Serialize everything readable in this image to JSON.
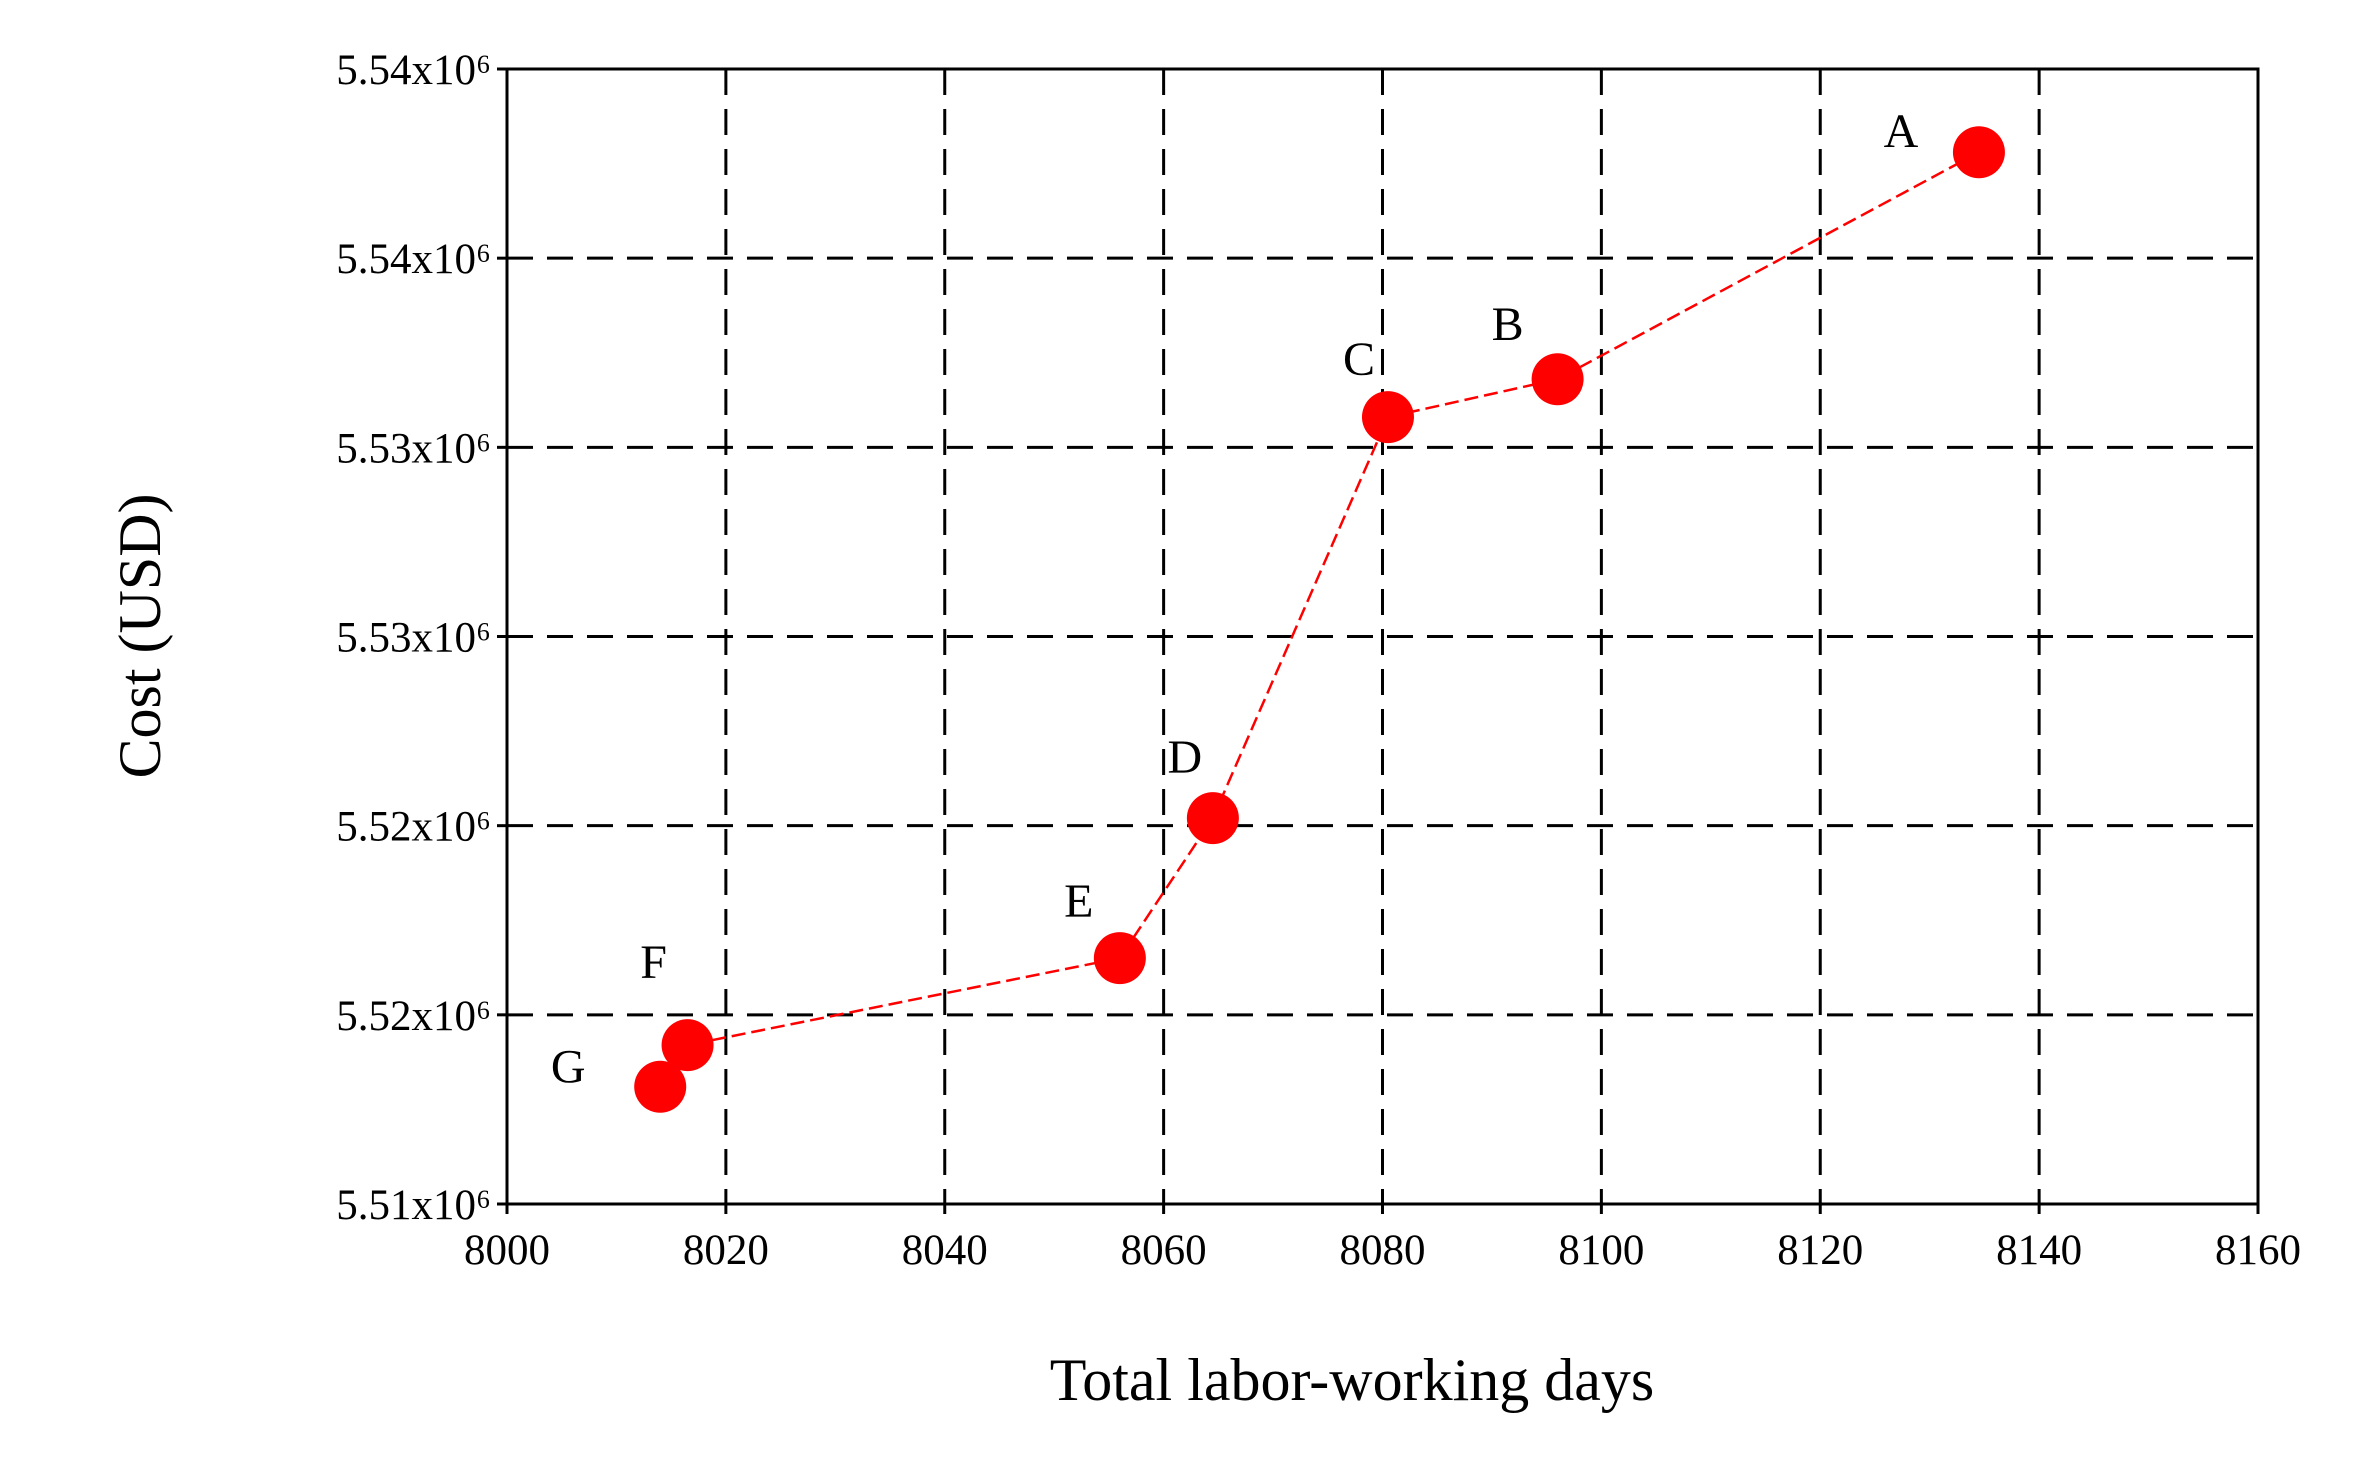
{
  "chart_data": {
    "type": "scatter-line",
    "x_label": "Total labor-working days",
    "y_label": "Cost (USD)",
    "x": [
      8134.5,
      8096,
      8080.5,
      8064.5,
      8056,
      8016.5,
      8014
    ],
    "values": [
      5537800,
      5531800,
      5530800,
      5520200,
      5516500,
      5514200,
      5513100
    ],
    "labels": [
      "A",
      "B",
      "C",
      "D",
      "E",
      "F",
      "G"
    ],
    "color": "#ff0000",
    "xlim": [
      8000,
      8160
    ],
    "xticks": [
      8000,
      8020,
      8040,
      8060,
      8080,
      8100,
      8120,
      8140,
      8160
    ],
    "ylim": [
      5510000,
      5540000
    ],
    "yticks": [
      {
        "value": 5510000,
        "label": "5.51x10⁶"
      },
      {
        "value": 5515000,
        "label": "5.52x10⁶"
      },
      {
        "value": 5520000,
        "label": "5.52x10⁶"
      },
      {
        "value": 5525000,
        "label": "5.53x10⁶"
      },
      {
        "value": 5530000,
        "label": "5.53x10⁶"
      },
      {
        "value": 5535000,
        "label": "5.54x10⁶"
      },
      {
        "value": 5540000,
        "label": "5.54x10⁶"
      }
    ],
    "grid": true
  }
}
